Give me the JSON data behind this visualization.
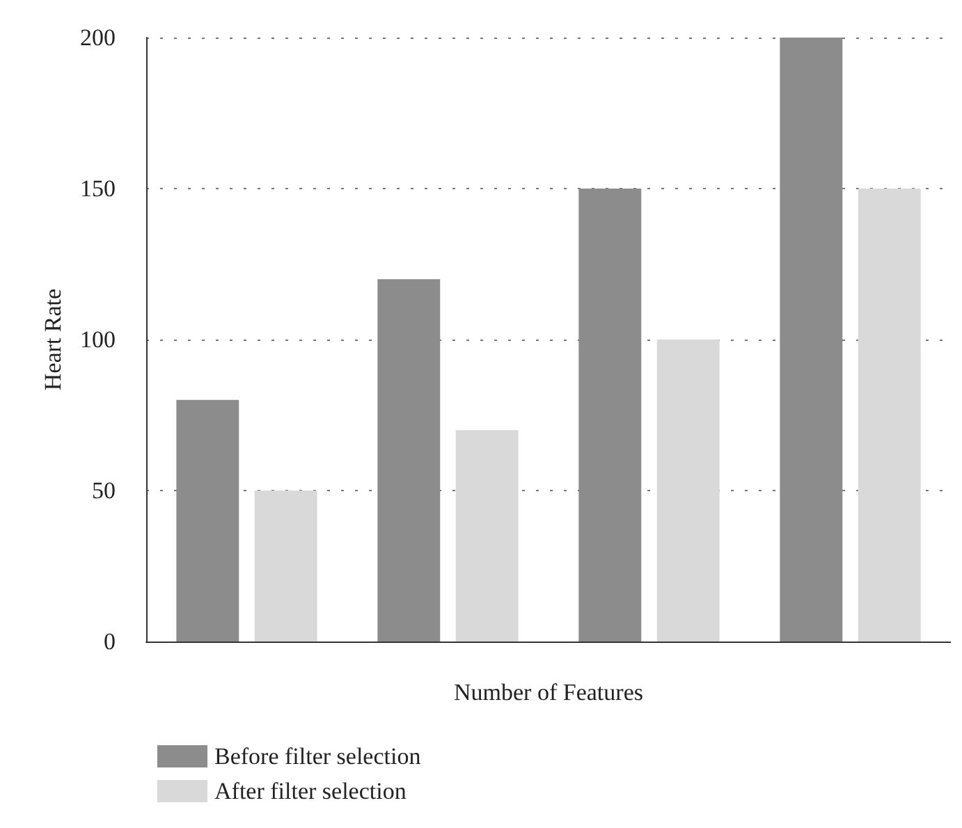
{
  "chart_data": {
    "type": "bar",
    "xlabel": "Number of Features",
    "ylabel": "Heart Rate",
    "categories": [
      null,
      null,
      null,
      null
    ],
    "series": [
      {
        "name": "Before filter selection",
        "color": "#8c8c8c",
        "values": [
          80,
          120,
          150,
          200
        ]
      },
      {
        "name": "After filter selection",
        "color": "#d9d9d9",
        "values": [
          50,
          70,
          100,
          150
        ]
      }
    ],
    "ylim": [
      0,
      200
    ],
    "yticks": [
      0,
      50,
      100,
      150,
      200
    ],
    "grid": "y",
    "legend": "bottom left"
  }
}
